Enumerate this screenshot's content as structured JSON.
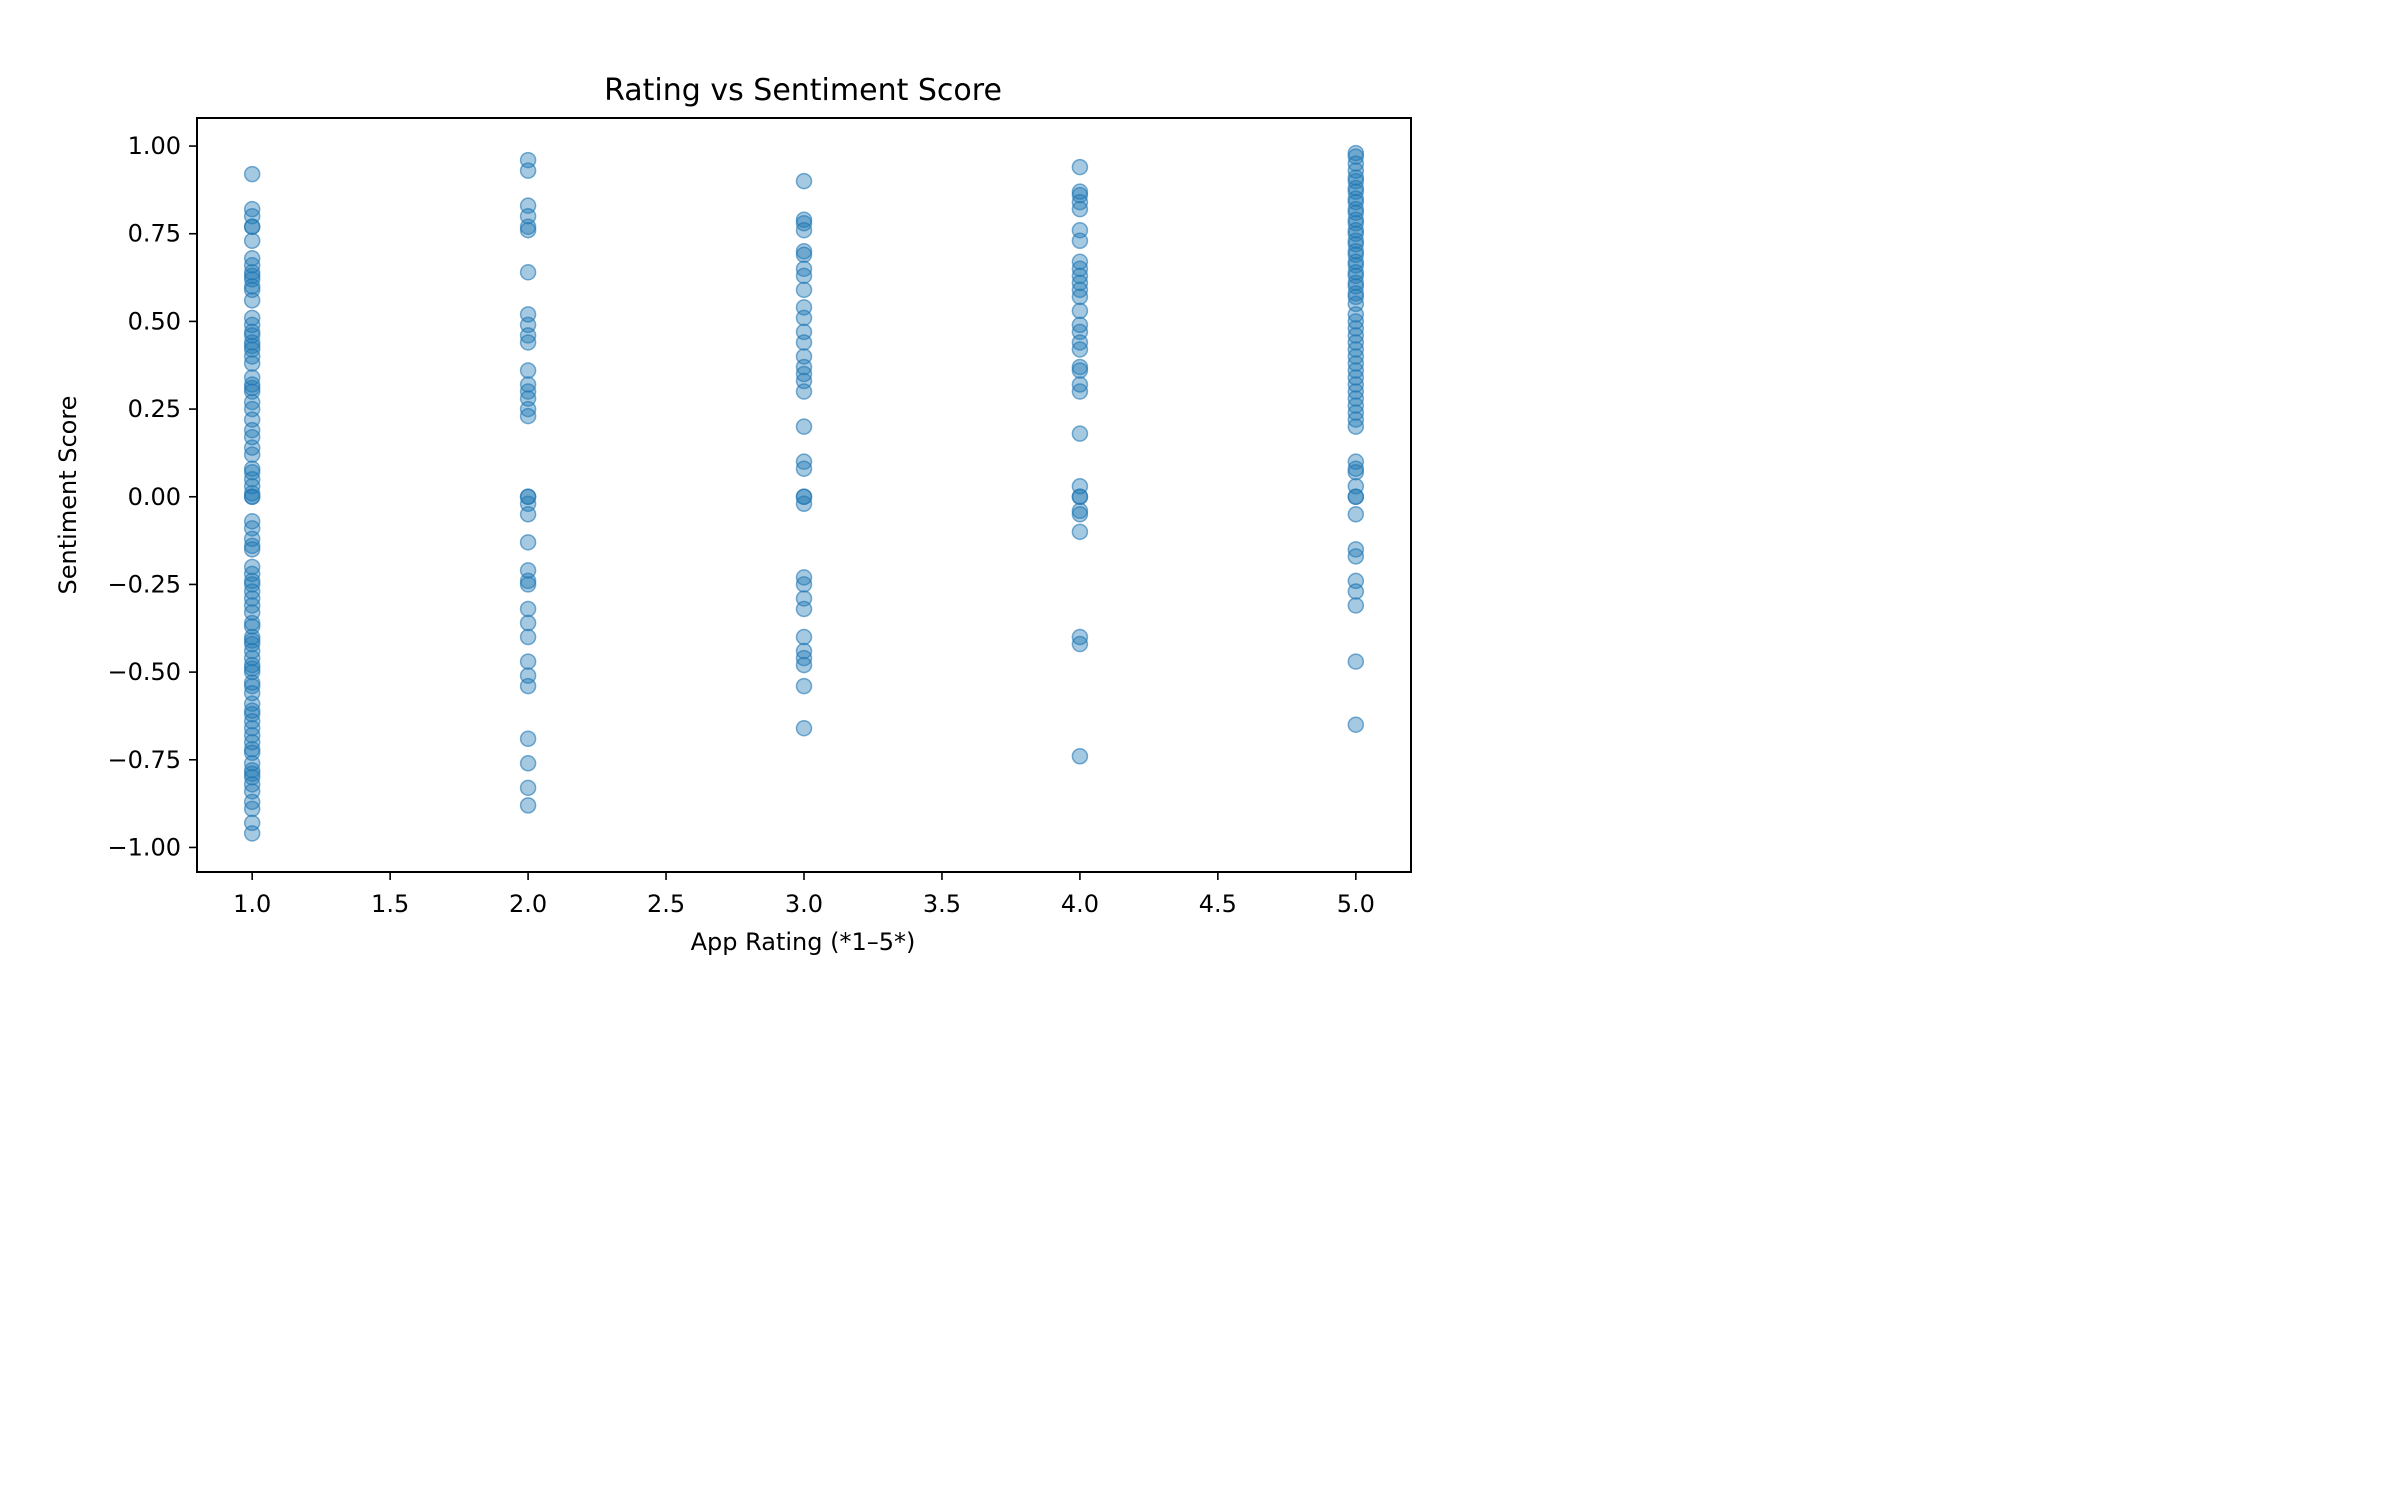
{
  "chart_data": {
    "type": "scatter",
    "title": "Rating vs Sentiment Score",
    "xlabel": "App Rating (*1–5*)",
    "ylabel": "Sentiment Score",
    "xlim": [
      0.8,
      5.2
    ],
    "ylim": [
      -1.07,
      1.08
    ],
    "xticks": [
      1.0,
      1.5,
      2.0,
      2.5,
      3.0,
      3.5,
      4.0,
      4.5,
      5.0
    ],
    "xtick_labels": [
      "1.0",
      "1.5",
      "2.0",
      "2.5",
      "3.0",
      "3.5",
      "4.0",
      "4.5",
      "5.0"
    ],
    "yticks": [
      -1.0,
      -0.75,
      -0.5,
      -0.25,
      0.0,
      0.25,
      0.5,
      0.75,
      1.0
    ],
    "ytick_labels": [
      "−1.00",
      "−0.75",
      "−0.50",
      "−0.25",
      "0.00",
      "0.25",
      "0.50",
      "0.75",
      "1.00"
    ],
    "grid": false,
    "marker_color": "#1f77b4",
    "marker_alpha": 0.4,
    "series": [
      {
        "x": 1.0,
        "y": [
          0.92,
          0.82,
          0.8,
          0.77,
          0.77,
          0.73,
          0.68,
          0.66,
          0.64,
          0.63,
          0.62,
          0.6,
          0.59,
          0.56,
          0.51,
          0.49,
          0.47,
          0.46,
          0.44,
          0.43,
          0.42,
          0.4,
          0.38,
          0.34,
          0.32,
          0.31,
          0.3,
          0.27,
          0.25,
          0.22,
          0.19,
          0.17,
          0.14,
          0.12,
          0.08,
          0.07,
          0.05,
          0.03,
          0.01,
          0.0,
          0.0,
          -0.07,
          -0.09,
          -0.12,
          -0.14,
          -0.15,
          -0.2,
          -0.22,
          -0.24,
          -0.25,
          -0.27,
          -0.29,
          -0.31,
          -0.33,
          -0.36,
          -0.37,
          -0.4,
          -0.41,
          -0.42,
          -0.44,
          -0.46,
          -0.48,
          -0.49,
          -0.5,
          -0.53,
          -0.54,
          -0.56,
          -0.59,
          -0.61,
          -0.62,
          -0.64,
          -0.66,
          -0.68,
          -0.7,
          -0.72,
          -0.73,
          -0.76,
          -0.78,
          -0.79,
          -0.8,
          -0.82,
          -0.84,
          -0.87,
          -0.89,
          -0.93,
          -0.96
        ]
      },
      {
        "x": 2.0,
        "y": [
          0.96,
          0.93,
          0.83,
          0.8,
          0.77,
          0.76,
          0.64,
          0.52,
          0.49,
          0.46,
          0.44,
          0.36,
          0.32,
          0.3,
          0.28,
          0.25,
          0.23,
          0.0,
          0.0,
          -0.02,
          -0.05,
          -0.13,
          -0.21,
          -0.24,
          -0.25,
          -0.32,
          -0.36,
          -0.4,
          -0.47,
          -0.51,
          -0.54,
          -0.69,
          -0.76,
          -0.83,
          -0.88
        ]
      },
      {
        "x": 3.0,
        "y": [
          0.9,
          0.79,
          0.78,
          0.76,
          0.7,
          0.69,
          0.65,
          0.63,
          0.59,
          0.54,
          0.51,
          0.47,
          0.44,
          0.4,
          0.37,
          0.35,
          0.33,
          0.3,
          0.2,
          0.1,
          0.08,
          0.0,
          0.0,
          -0.02,
          -0.23,
          -0.25,
          -0.29,
          -0.32,
          -0.4,
          -0.44,
          -0.46,
          -0.48,
          -0.54,
          -0.66
        ]
      },
      {
        "x": 4.0,
        "y": [
          0.94,
          0.87,
          0.86,
          0.84,
          0.82,
          0.76,
          0.73,
          0.67,
          0.65,
          0.63,
          0.61,
          0.59,
          0.57,
          0.53,
          0.49,
          0.47,
          0.44,
          0.42,
          0.37,
          0.36,
          0.32,
          0.3,
          0.18,
          0.03,
          0.0,
          0.0,
          -0.04,
          -0.05,
          -0.1,
          -0.4,
          -0.42,
          -0.74
        ]
      },
      {
        "x": 5.0,
        "y": [
          0.98,
          0.97,
          0.95,
          0.93,
          0.91,
          0.9,
          0.88,
          0.87,
          0.85,
          0.84,
          0.82,
          0.81,
          0.79,
          0.78,
          0.76,
          0.75,
          0.73,
          0.72,
          0.7,
          0.69,
          0.67,
          0.66,
          0.64,
          0.63,
          0.61,
          0.6,
          0.58,
          0.57,
          0.55,
          0.52,
          0.5,
          0.48,
          0.46,
          0.44,
          0.42,
          0.4,
          0.38,
          0.36,
          0.34,
          0.32,
          0.3,
          0.28,
          0.26,
          0.24,
          0.22,
          0.2,
          0.1,
          0.08,
          0.07,
          0.03,
          0.0,
          0.0,
          -0.05,
          -0.15,
          -0.17,
          -0.24,
          -0.27,
          -0.31,
          -0.47,
          -0.65
        ]
      }
    ]
  }
}
